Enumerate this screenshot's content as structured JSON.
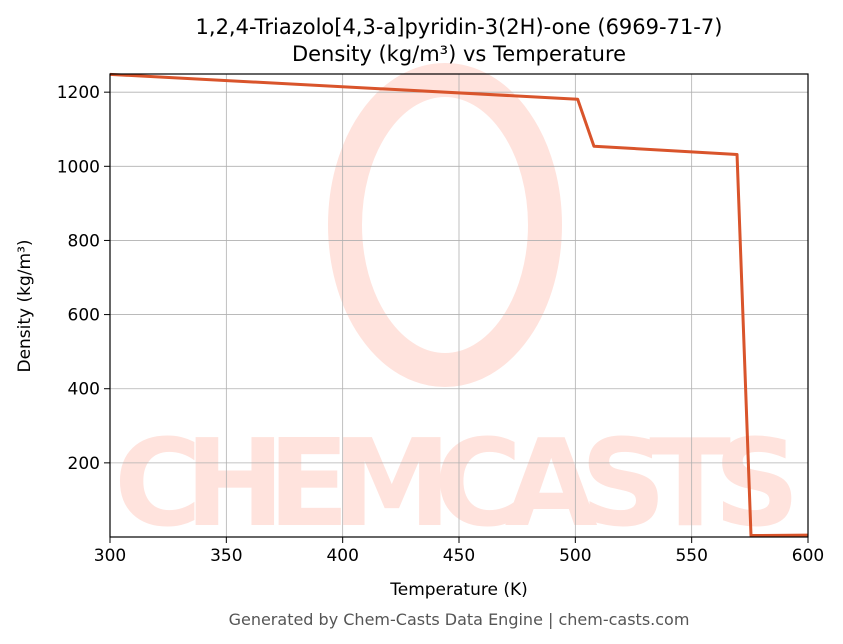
{
  "chart_data": {
    "type": "line",
    "title": "1,2,4-Triazolo[4,3-a]pyridin-3(2H)-one (6969-71-7)",
    "subtitle": "Density (kg/m³) vs Temperature",
    "x_label": "Temperature (K)",
    "y_label": "Density (kg/m³)",
    "footer": "Generated by Chem-Casts Data Engine | chem-casts.com",
    "watermark": "CHEMCASTS",
    "x": [
      300,
      501,
      508,
      569.5,
      575.5,
      600
    ],
    "series": [
      {
        "name": "Density",
        "color": "#d9542b",
        "values": [
          1248,
          1181,
          1054,
          1032,
          4,
          5
        ]
      }
    ],
    "xlim": [
      300,
      600
    ],
    "xticks": [
      300,
      350,
      400,
      450,
      500,
      550,
      600
    ],
    "ylim": [
      0,
      1249
    ],
    "yticks": [
      200,
      400,
      600,
      800,
      1000,
      1200
    ],
    "grid": true
  }
}
